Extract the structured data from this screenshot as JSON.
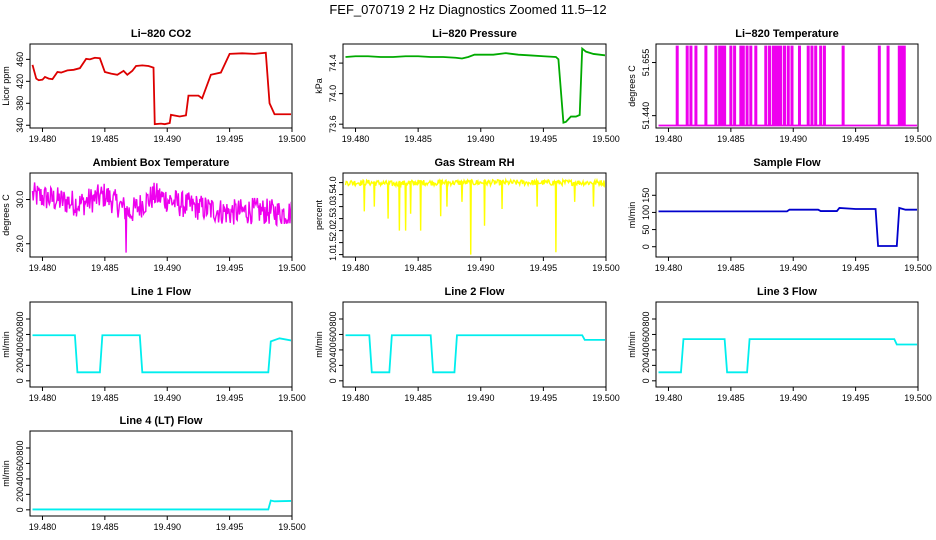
{
  "title": "FEF_070719  2 Hz Diagnostics Zoomed 11.5–12",
  "chart_data": [
    {
      "type": "line",
      "title": "Li−820 CO2",
      "ylabel": "Licor ppm",
      "color": "#dd0000",
      "xlim": [
        19.479,
        19.5
      ],
      "ylim": [
        335,
        488
      ],
      "x_ticks": [
        "19.480",
        "19.485",
        "19.490",
        "19.495",
        "19.500"
      ],
      "y_ticks": [
        "340",
        "380",
        "420",
        "460"
      ],
      "x": [
        19.4792,
        19.4795,
        19.4797,
        19.48,
        19.4802,
        19.4805,
        19.4808,
        19.4812,
        19.4815,
        19.482,
        19.4825,
        19.483,
        19.4835,
        19.4838,
        19.4842,
        19.4846,
        19.485,
        19.4855,
        19.486,
        19.4865,
        19.4868,
        19.4872,
        19.4875,
        19.488,
        19.4885,
        19.4889,
        19.489,
        19.4895,
        19.4898,
        19.4902,
        19.4903,
        19.491,
        19.4915,
        19.4917,
        19.4925,
        19.4928,
        19.4935,
        19.4943,
        19.495,
        19.496,
        19.497,
        19.4979,
        19.4982,
        19.4986,
        19.4991,
        19.4995,
        19.5
      ],
      "values": [
        450,
        425,
        422,
        423,
        428,
        425,
        424,
        437,
        436,
        440,
        441,
        444,
        461,
        460,
        463,
        462,
        437,
        434,
        432,
        439,
        432,
        439,
        448,
        449,
        448,
        445,
        342,
        343,
        342,
        344,
        359,
        356,
        358,
        394,
        394,
        389,
        432,
        436,
        470,
        471,
        470,
        472,
        380,
        360,
        360,
        360,
        360
      ]
    },
    {
      "type": "line",
      "title": "Li−820 Pressure",
      "ylabel": "kPa",
      "color": "#00aa00",
      "xlim": [
        19.479,
        19.5
      ],
      "ylim": [
        73.55,
        74.65
      ],
      "x_ticks": [
        "19.480",
        "19.485",
        "19.490",
        "19.495",
        "19.500"
      ],
      "y_ticks": [
        "73.6",
        "74.0",
        "74.4"
      ],
      "x": [
        19.4792,
        19.48,
        19.481,
        19.482,
        19.483,
        19.484,
        19.485,
        19.486,
        19.487,
        19.488,
        19.4885,
        19.489,
        19.4895,
        19.49,
        19.491,
        19.492,
        19.4925,
        19.493,
        19.494,
        19.495,
        19.496,
        19.4962,
        19.4966,
        19.4968,
        19.4972,
        19.4976,
        19.4979,
        19.4981,
        19.4984,
        19.499,
        19.5
      ],
      "values": [
        74.48,
        74.49,
        74.49,
        74.48,
        74.48,
        74.49,
        74.49,
        74.48,
        74.48,
        74.47,
        74.46,
        74.48,
        74.51,
        74.51,
        74.51,
        74.53,
        74.52,
        74.51,
        74.5,
        74.49,
        74.48,
        74.45,
        73.62,
        73.63,
        73.7,
        73.7,
        73.72,
        74.59,
        74.55,
        74.52,
        74.5
      ]
    },
    {
      "type": "line",
      "title": "Li−820 Temperature",
      "ylabel": "degrees C",
      "color": "#ee00ee",
      "xlim": [
        19.479,
        19.5
      ],
      "ylim": [
        51.39,
        51.73
      ],
      "x_ticks": [
        "19.480",
        "19.485",
        "19.490",
        "19.495",
        "19.500"
      ],
      "y_ticks": [
        "51.440",
        "51.655"
      ],
      "baseline": 51.4,
      "spike_level": 51.72,
      "spikes_x": [
        19.4807,
        19.4815,
        19.4818,
        19.4822,
        19.483,
        19.4838,
        19.4841,
        19.4843,
        19.4845,
        19.485,
        19.4853,
        19.4858,
        19.486,
        19.4863,
        19.4866,
        19.487,
        19.4878,
        19.4881,
        19.4884,
        19.4886,
        19.4888,
        19.489,
        19.4893,
        19.4896,
        19.4899,
        19.4905,
        19.4912,
        19.4915,
        19.4918,
        19.4922,
        19.4925,
        19.494,
        19.4969,
        19.4976,
        19.4985,
        19.4987,
        19.4989
      ]
    },
    {
      "type": "line",
      "title": "Ambient Box Temperature",
      "ylabel": "degrees C",
      "color": "#ee00ee",
      "xlim": [
        19.479,
        19.5
      ],
      "ylim": [
        28.7,
        30.6
      ],
      "x_ticks": [
        "19.480",
        "19.485",
        "19.490",
        "19.495",
        "19.500"
      ],
      "y_ticks": [
        "29.0",
        "30.0"
      ],
      "x": [
        19.4792,
        19.481,
        19.483,
        19.485,
        19.486,
        19.487,
        19.489,
        19.491,
        19.493,
        19.495,
        19.497,
        19.499,
        19.5
      ],
      "values": [
        30.1,
        30.0,
        29.9,
        30.1,
        29.9,
        29.7,
        30.1,
        29.9,
        29.8,
        29.7,
        29.75,
        29.7,
        29.7
      ],
      "noise_amplitude": 0.3,
      "dip": {
        "x": 19.4867,
        "value": 28.8
      }
    },
    {
      "type": "line",
      "title": "Gas Stream RH",
      "ylabel": "percent",
      "color": "#ffff00",
      "xlim": [
        19.479,
        19.5
      ],
      "ylim": [
        0.9,
        4.4
      ],
      "x_ticks": [
        "19.480",
        "19.485",
        "19.490",
        "19.495",
        "19.500"
      ],
      "y_ticks": [
        "1.0",
        "1.5",
        "2.0",
        "2.5",
        "3.0",
        "3.5",
        "4.0"
      ],
      "x": [
        19.4792,
        19.481,
        19.483,
        19.485,
        19.487,
        19.489,
        19.491,
        19.493,
        19.495,
        19.497,
        19.499,
        19.5
      ],
      "values": [
        4.0,
        4.0,
        3.95,
        4.0,
        4.0,
        4.0,
        4.0,
        4.0,
        4.0,
        4.0,
        4.0,
        4.0
      ],
      "noise_amplitude": 0.12,
      "dips": [
        {
          "x": 19.4807,
          "value": 2.8
        },
        {
          "x": 19.4815,
          "value": 3.0
        },
        {
          "x": 19.4826,
          "value": 2.5
        },
        {
          "x": 19.4835,
          "value": 2.0
        },
        {
          "x": 19.484,
          "value": 2.0
        },
        {
          "x": 19.4844,
          "value": 2.7
        },
        {
          "x": 19.4852,
          "value": 2.0
        },
        {
          "x": 19.4868,
          "value": 2.6
        },
        {
          "x": 19.4873,
          "value": 3.0
        },
        {
          "x": 19.4885,
          "value": 3.2
        },
        {
          "x": 19.4892,
          "value": 1.0
        },
        {
          "x": 19.4903,
          "value": 2.2
        },
        {
          "x": 19.4917,
          "value": 2.9
        },
        {
          "x": 19.4945,
          "value": 3.0
        },
        {
          "x": 19.496,
          "value": 1.1
        },
        {
          "x": 19.4975,
          "value": 3.2
        },
        {
          "x": 19.499,
          "value": 3.0
        }
      ]
    },
    {
      "type": "line",
      "title": "Sample Flow",
      "ylabel": "ml/min",
      "color": "#0000cc",
      "xlim": [
        19.479,
        19.5
      ],
      "ylim": [
        -30,
        215
      ],
      "x_ticks": [
        "19.480",
        "19.485",
        "19.490",
        "19.495",
        "19.500"
      ],
      "y_ticks": [
        "0",
        "50",
        "100",
        "150"
      ],
      "x": [
        19.4792,
        19.483,
        19.487,
        19.4895,
        19.4897,
        19.492,
        19.4922,
        19.4935,
        19.4937,
        19.495,
        19.4966,
        19.4968,
        19.4983,
        19.4985,
        19.499,
        19.5
      ],
      "values": [
        103,
        103,
        103,
        103,
        108,
        108,
        104,
        104,
        113,
        110,
        110,
        2,
        2,
        113,
        108,
        108
      ]
    },
    {
      "type": "line",
      "title": "Line 1 Flow",
      "ylabel": "ml/min",
      "color": "#00eeee",
      "xlim": [
        19.479,
        19.5
      ],
      "ylim": [
        -80,
        1020
      ],
      "x_ticks": [
        "19.480",
        "19.485",
        "19.490",
        "19.495",
        "19.500"
      ],
      "y_ticks": [
        "0",
        "200",
        "400",
        "600",
        "800"
      ],
      "x": [
        19.4792,
        19.4826,
        19.4828,
        19.4846,
        19.4848,
        19.4878,
        19.488,
        19.496,
        19.4981,
        19.4983,
        19.499,
        19.5
      ],
      "values": [
        590,
        590,
        110,
        110,
        590,
        590,
        110,
        110,
        110,
        510,
        550,
        520
      ]
    },
    {
      "type": "line",
      "title": "Line 2 Flow",
      "ylabel": "ml/min",
      "color": "#00eeee",
      "xlim": [
        19.479,
        19.5
      ],
      "ylim": [
        -80,
        1020
      ],
      "x_ticks": [
        "19.480",
        "19.485",
        "19.490",
        "19.495",
        "19.500"
      ],
      "y_ticks": [
        "0",
        "200",
        "400",
        "600",
        "800"
      ],
      "x": [
        19.4792,
        19.4811,
        19.4813,
        19.4827,
        19.4829,
        19.486,
        19.4862,
        19.4879,
        19.4881,
        19.494,
        19.4981,
        19.4983,
        19.5
      ],
      "values": [
        590,
        590,
        110,
        110,
        590,
        590,
        110,
        110,
        590,
        590,
        590,
        530,
        530
      ]
    },
    {
      "type": "line",
      "title": "Line 3 Flow",
      "ylabel": "ml/min",
      "color": "#00eeee",
      "xlim": [
        19.479,
        19.5
      ],
      "ylim": [
        -80,
        1020
      ],
      "x_ticks": [
        "19.480",
        "19.485",
        "19.490",
        "19.495",
        "19.500"
      ],
      "y_ticks": [
        "0",
        "200",
        "400",
        "600",
        "800"
      ],
      "x": [
        19.4792,
        19.481,
        19.4812,
        19.4845,
        19.4847,
        19.4863,
        19.4865,
        19.494,
        19.4981,
        19.4983,
        19.5
      ],
      "values": [
        110,
        110,
        540,
        540,
        110,
        110,
        540,
        540,
        540,
        470,
        470
      ]
    },
    {
      "type": "line",
      "title": "Line 4 (LT) Flow",
      "ylabel": "ml/min",
      "color": "#00eeee",
      "xlim": [
        19.479,
        19.5
      ],
      "ylim": [
        -80,
        1020
      ],
      "x_ticks": [
        "19.480",
        "19.485",
        "19.490",
        "19.495",
        "19.500"
      ],
      "y_ticks": [
        "0",
        "200",
        "400",
        "600",
        "800"
      ],
      "x": [
        19.4792,
        19.485,
        19.49,
        19.4981,
        19.4983,
        19.4986,
        19.5
      ],
      "values": [
        5,
        5,
        5,
        5,
        120,
        110,
        115
      ]
    }
  ]
}
